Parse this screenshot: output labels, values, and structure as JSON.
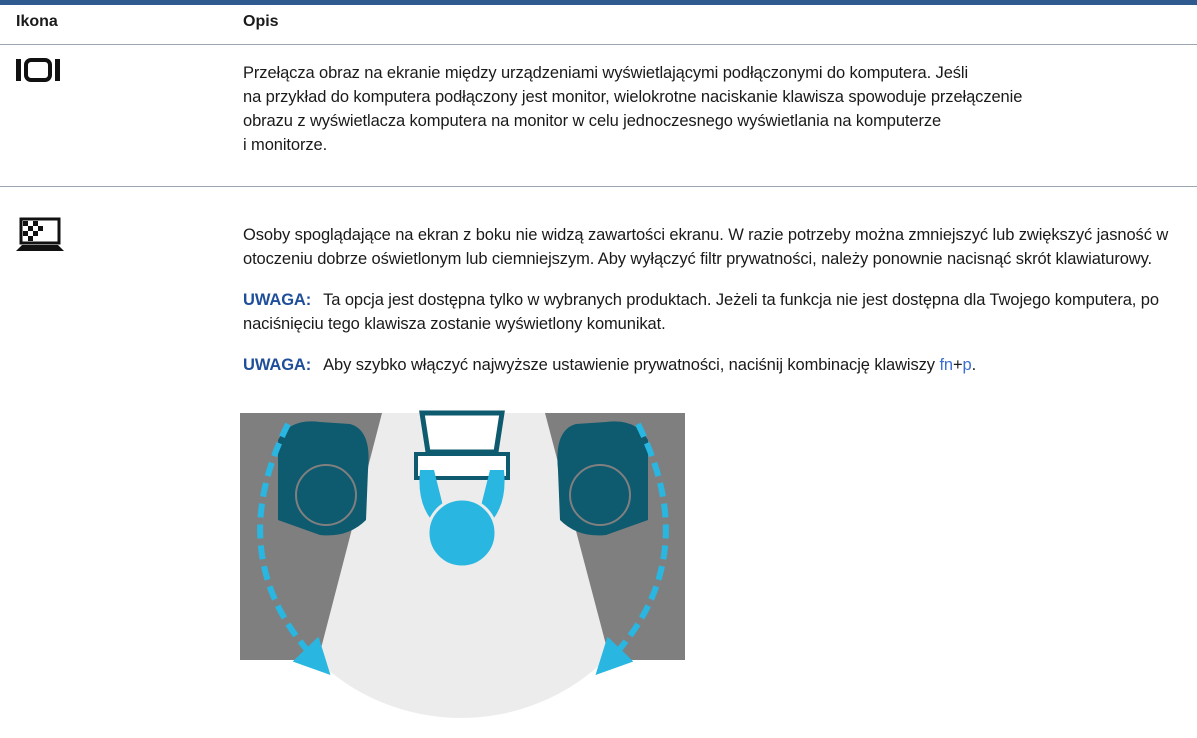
{
  "header": {
    "icon": "Ikona",
    "description": "Opis"
  },
  "rows": [
    {
      "lines": [
        "Przełącza obraz na ekranie między urządzeniami wyświetlającymi podłączonymi do komputera. Jeśli",
        "na przykład do komputera podłączony jest monitor, wielokrotne naciskanie klawisza spowoduje przełączenie",
        "obrazu z wyświetlacza komputera na monitor w celu jednoczesnego wyświetlania na komputerze",
        "i monitorze."
      ]
    },
    {
      "paragraph": "Osoby spoglądające na ekran z boku nie widzą zawartości ekranu. W razie potrzeby można zmniejszyć lub zwiększyć jasność w otoczeniu dobrze oświetlonym lub ciemniejszym. Aby wyłączyć filtr prywatności, należy ponownie nacisnąć skrót klawiaturowy.",
      "notes": [
        {
          "label": "UWAGA:",
          "text": "Ta opcja jest dostępna tylko w wybranych produktach. Jeżeli ta funkcja nie jest dostępna dla Twojego komputera, po naciśnięciu tego klawisza zostanie wyświetlony komunikat."
        },
        {
          "label": "UWAGA:",
          "text": "Aby szybko włączyć najwyższe ustawienie prywatności, naciśnij kombinację klawiszy ",
          "key1": "fn",
          "plus": "+",
          "key2": "p",
          "end": "."
        }
      ]
    }
  ]
}
